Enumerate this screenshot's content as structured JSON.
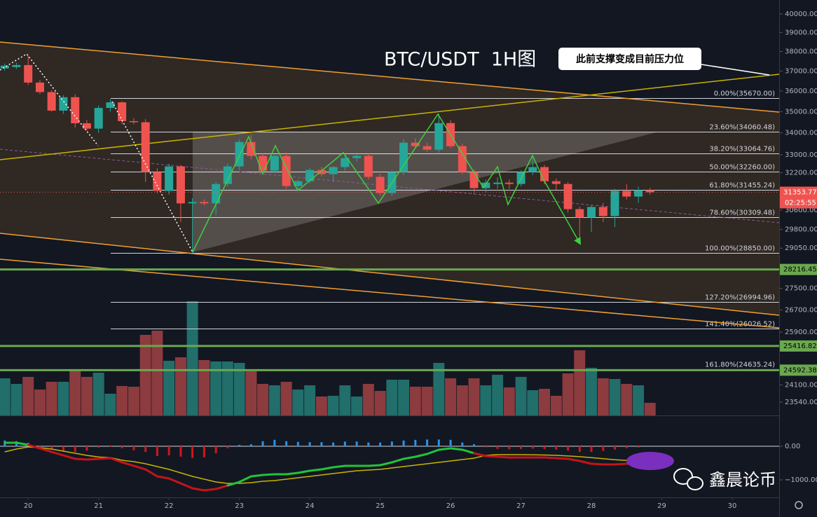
{
  "chart_data": [
    {
      "type": "candlestick",
      "title": "BTC/USDT  1H图",
      "annotation": "此前支撑变成目前压力位",
      "x": [
        19.667,
        19.833,
        20,
        20.167,
        20.333,
        20.5,
        20.667,
        20.833,
        21,
        21.167,
        21.333,
        21.5,
        21.667,
        21.833,
        22,
        22.167,
        22.333,
        22.5,
        22.667,
        22.833,
        23,
        23.167,
        23.333,
        23.5,
        23.667,
        23.833,
        24,
        24.167,
        24.333,
        24.5,
        24.667,
        24.833,
        25,
        25.167,
        25.333,
        25.5,
        25.667,
        25.833,
        26,
        26.167,
        26.333,
        26.5,
        26.667,
        26.833,
        27,
        27.167,
        27.333,
        27.5,
        27.667,
        27.833,
        28,
        28.167,
        28.333,
        28.5,
        28.667,
        28.833
      ],
      "open": [
        37130,
        37200,
        37300,
        36420,
        35950,
        35050,
        35700,
        34450,
        34200,
        35180,
        35450,
        34550,
        34500,
        32230,
        31410,
        32480,
        30880,
        30940,
        30880,
        31710,
        32480,
        33580,
        32950,
        32290,
        32950,
        31620,
        31830,
        32320,
        32140,
        32450,
        32850,
        32950,
        32020,
        31320,
        32230,
        33550,
        33390,
        33230,
        34460,
        33390,
        32230,
        31530,
        31710,
        31770,
        31710,
        32230,
        32450,
        31830,
        31710,
        30640,
        30290,
        30730,
        30350,
        31410,
        31170,
        31440
      ],
      "high": [
        37380,
        37420,
        37800,
        36550,
        36050,
        35800,
        35850,
        34600,
        35300,
        35600,
        35500,
        34700,
        34650,
        32400,
        32600,
        32550,
        31100,
        31050,
        31800,
        32600,
        33700,
        33900,
        33050,
        33000,
        33100,
        31900,
        32400,
        32450,
        32500,
        33000,
        33100,
        33050,
        32150,
        32300,
        33700,
        33750,
        33550,
        34900,
        34600,
        33500,
        32350,
        31900,
        32000,
        31900,
        32300,
        32900,
        32550,
        31950,
        31800,
        30750,
        30800,
        30900,
        31500,
        31700,
        31600,
        31550
      ],
      "low": [
        37020,
        37100,
        36300,
        35850,
        35000,
        34900,
        34250,
        34100,
        34000,
        35000,
        34400,
        34400,
        31800,
        31300,
        31250,
        30100,
        28850,
        30800,
        30400,
        31600,
        32300,
        32800,
        32100,
        32200,
        31500,
        31400,
        31750,
        32050,
        31800,
        32300,
        32700,
        31900,
        31200,
        31200,
        32100,
        33300,
        33150,
        33100,
        33300,
        32150,
        31300,
        31350,
        31500,
        31500,
        31600,
        32100,
        31700,
        31450,
        30500,
        29450,
        29700,
        30100,
        29900,
        31050,
        30900,
        31250
      ],
      "close": [
        37270,
        37300,
        36420,
        35950,
        35050,
        35700,
        34450,
        34200,
        35180,
        35450,
        34550,
        34500,
        32230,
        31410,
        32480,
        30880,
        30940,
        30880,
        31710,
        32480,
        33580,
        32950,
        32290,
        32950,
        31620,
        31830,
        32320,
        32140,
        32450,
        32850,
        32950,
        32020,
        31320,
        32230,
        33550,
        33390,
        33230,
        34460,
        33390,
        32230,
        31530,
        31770,
        31770,
        31710,
        32230,
        32450,
        31830,
        31710,
        30640,
        30290,
        30730,
        30350,
        31410,
        31170,
        31440,
        31353.77
      ],
      "up_color": "#26a69a",
      "down_color": "#ef5350",
      "xlim": [
        19.6,
        30.667
      ],
      "xticks": [
        20,
        21,
        22,
        23,
        24,
        25,
        26,
        27,
        28,
        29,
        30
      ],
      "ylim": [
        23118,
        40766
      ],
      "log_scale": true,
      "yticks": [
        {
          "value": 40000,
          "label": "40000.00"
        },
        {
          "value": 39000,
          "label": "39000.00"
        },
        {
          "value": 38000,
          "label": "38000.00"
        },
        {
          "value": 37000,
          "label": "37000.00"
        },
        {
          "value": 36000,
          "label": "36000.00"
        },
        {
          "value": 35000,
          "label": "35000.00"
        },
        {
          "value": 34000,
          "label": "34000.00"
        },
        {
          "value": 33000,
          "label": "33000.00"
        },
        {
          "value": 32200,
          "label": "32200.00"
        },
        {
          "value": 30600,
          "label": "30600.00"
        },
        {
          "value": 29800,
          "label": "29800.00"
        },
        {
          "value": 29050,
          "label": "29050.00"
        },
        {
          "value": 27500,
          "label": "27500.00"
        },
        {
          "value": 26700,
          "label": "26700.00"
        },
        {
          "value": 25900,
          "label": "25900.00"
        },
        {
          "value": 24100,
          "label": "24100.00"
        },
        {
          "value": 23540,
          "label": "23540.00"
        }
      ],
      "fib_levels": [
        {
          "value": 35670,
          "label": "0.00%(35670.00)"
        },
        {
          "value": 34060.48,
          "label": "23.60%(34060.48)"
        },
        {
          "value": 33064.76,
          "label": "38.20%(33064.76)"
        },
        {
          "value": 32260,
          "label": "50.00%(32260.00)"
        },
        {
          "value": 31455.24,
          "label": "61.80%(31455.24)"
        },
        {
          "value": 30309.48,
          "label": "78.60%(30309.48)"
        },
        {
          "value": 28850,
          "label": "100.00%(28850.00)"
        },
        {
          "value": 26994.96,
          "label": "127.20%(26994.96)"
        },
        {
          "value": 26026.52,
          "label": "141.40%(26026.52)"
        },
        {
          "value": 24635.24,
          "label": "161.80%(24635.24)"
        }
      ],
      "support_lines": [
        28216.45,
        25416.82,
        24592.38
      ],
      "support_color": "#6aa84f",
      "last_price": 31353.77,
      "countdown": "02:25:55"
    },
    {
      "type": "bar",
      "x": [
        19.667,
        19.833,
        20,
        20.167,
        20.333,
        20.5,
        20.667,
        20.833,
        21,
        21.167,
        21.333,
        21.5,
        21.667,
        21.833,
        22,
        22.167,
        22.333,
        22.5,
        22.667,
        22.833,
        23,
        23.167,
        23.333,
        23.5,
        23.667,
        23.833,
        24,
        24.167,
        24.333,
        24.5,
        24.667,
        24.833,
        25,
        25.167,
        25.333,
        25.5,
        25.667,
        25.833,
        26,
        26.167,
        26.333,
        26.5,
        26.667,
        26.833,
        27,
        27.167,
        27.333,
        27.5,
        27.667,
        27.833,
        28,
        28.167,
        28.333,
        28.5,
        28.667,
        28.833
      ],
      "values": [
        53,
        45,
        55,
        37,
        48,
        48,
        66,
        55,
        61,
        31,
        42,
        41,
        115,
        121,
        78,
        83,
        163,
        79,
        77,
        77,
        75,
        63,
        45,
        43,
        48,
        37,
        43,
        27,
        28,
        43,
        27,
        45,
        35,
        51,
        51,
        41,
        41,
        75,
        53,
        43,
        53,
        43,
        58,
        40,
        55,
        36,
        38,
        28,
        60,
        93,
        68,
        53,
        52,
        45,
        43,
        18
      ],
      "up_color": "#216e6b",
      "down_color": "#8c3b3f",
      "xlim": [
        19.6,
        30.667
      ],
      "ylim": [
        0,
        200
      ]
    },
    {
      "type": "macd",
      "x": [
        19.667,
        19.833,
        20,
        20.167,
        20.333,
        20.5,
        20.667,
        20.833,
        21,
        21.167,
        21.333,
        21.5,
        21.667,
        21.833,
        22,
        22.167,
        22.333,
        22.5,
        22.667,
        22.833,
        23,
        23.167,
        23.333,
        23.5,
        23.667,
        23.833,
        24,
        24.167,
        24.333,
        24.5,
        24.667,
        24.833,
        25,
        25.167,
        25.333,
        25.5,
        25.667,
        25.833,
        26,
        26.167,
        26.333,
        26.5,
        26.667,
        26.833,
        27,
        27.167,
        27.333,
        27.5,
        27.667,
        27.833,
        28,
        28.167,
        28.333,
        28.5,
        28.667,
        28.833
      ],
      "macd": [
        104,
        104,
        42,
        -63,
        -167,
        -271,
        -375,
        -396,
        -375,
        -354,
        -479,
        -583,
        -688,
        -896,
        -958,
        -1104,
        -1250,
        -1313,
        -1271,
        -1167,
        -1063,
        -896,
        -854,
        -833,
        -833,
        -792,
        -729,
        -688,
        -625,
        -583,
        -583,
        -583,
        -563,
        -479,
        -375,
        -313,
        -229,
        -104,
        -63,
        -104,
        -208,
        -292,
        -313,
        -333,
        -333,
        -333,
        -333,
        -354,
        -375,
        -438,
        -521,
        -542,
        -542,
        -521,
        -500,
        -458
      ],
      "signal": [
        -167,
        -83,
        -21,
        -42,
        -83,
        -146,
        -208,
        -271,
        -320,
        -340,
        -417,
        -458,
        -521,
        -604,
        -688,
        -792,
        -896,
        -979,
        -1063,
        -1104,
        -1104,
        -1083,
        -1042,
        -1021,
        -979,
        -938,
        -896,
        -854,
        -813,
        -771,
        -729,
        -708,
        -688,
        -646,
        -604,
        -563,
        -521,
        -479,
        -438,
        -396,
        -354,
        -271,
        -250,
        -250,
        -250,
        -255,
        -260,
        -270,
        -290,
        -310,
        -340,
        -370,
        -400,
        -420,
        -450,
        -479
      ],
      "histogram": [
        170,
        150,
        100,
        -20,
        -80,
        -130,
        -170,
        -130,
        -40,
        -20,
        -60,
        -120,
        -170,
        -290,
        -270,
        -310,
        -350,
        -330,
        -210,
        -60,
        40,
        60,
        150,
        190,
        150,
        130,
        120,
        120,
        110,
        140,
        140,
        110,
        110,
        140,
        170,
        190,
        200,
        200,
        190,
        110,
        60,
        -30,
        -80,
        -90,
        -80,
        -70,
        -80,
        -100,
        -130,
        -170,
        -170,
        -140,
        -100,
        -60,
        -40,
        20
      ],
      "macd_up_color": "#22c33b",
      "macd_down_color": "#c4141a",
      "signal_color": "#c8b400",
      "hist_up_color": "#2196f3",
      "hist_down_color": "#d3151c",
      "xlim": [
        19.6,
        30.667
      ],
      "ylim": [
        -1521,
        875
      ],
      "yticks": [
        {
          "value": 0,
          "label": "0.00"
        },
        {
          "value": -1000,
          "label": "−1000.00"
        }
      ]
    }
  ],
  "watermark": "鑫晨论币"
}
